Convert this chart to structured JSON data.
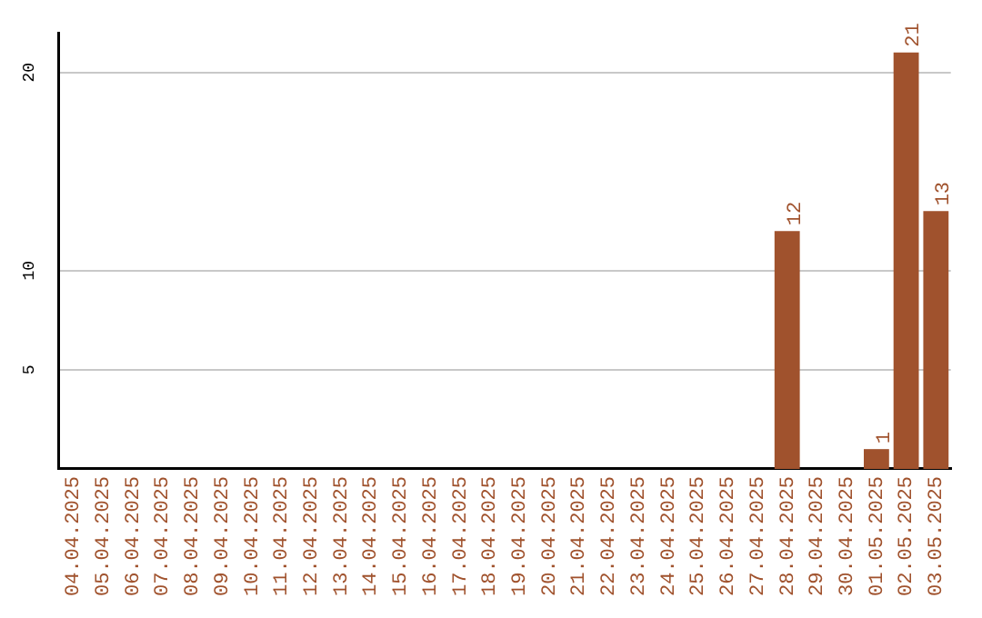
{
  "chart_data": {
    "type": "bar",
    "categories": [
      "04.04.2025",
      "05.04.2025",
      "06.04.2025",
      "07.04.2025",
      "08.04.2025",
      "09.04.2025",
      "10.04.2025",
      "11.04.2025",
      "12.04.2025",
      "13.04.2025",
      "14.04.2025",
      "15.04.2025",
      "16.04.2025",
      "17.04.2025",
      "18.04.2025",
      "19.04.2025",
      "20.04.2025",
      "21.04.2025",
      "22.04.2025",
      "23.04.2025",
      "24.04.2025",
      "25.04.2025",
      "26.04.2025",
      "27.04.2025",
      "28.04.2025",
      "29.04.2025",
      "30.04.2025",
      "01.05.2025",
      "02.05.2025",
      "03.05.2025"
    ],
    "values": [
      0,
      0,
      0,
      0,
      0,
      0,
      0,
      0,
      0,
      0,
      0,
      0,
      0,
      0,
      0,
      0,
      0,
      0,
      0,
      0,
      0,
      0,
      0,
      0,
      12,
      0,
      0,
      1,
      21,
      13
    ],
    "value_labels": [
      null,
      null,
      null,
      null,
      null,
      null,
      null,
      null,
      null,
      null,
      null,
      null,
      null,
      null,
      null,
      null,
      null,
      null,
      null,
      null,
      null,
      null,
      null,
      null,
      "12",
      null,
      null,
      "1",
      "21",
      "13"
    ],
    "color": "#a0522d",
    "ylim": [
      0,
      22
    ],
    "yticks": [
      5,
      10,
      20
    ],
    "grid": "y",
    "legend": false
  }
}
